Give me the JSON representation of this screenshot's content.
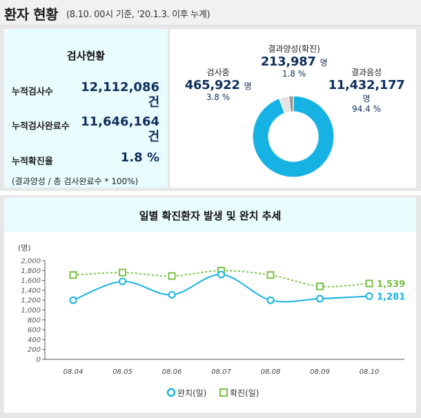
{
  "header": {
    "title": "환자 현황",
    "subtitle": "(8.10. 00시 기준, '20.1.3. 이후 누계)"
  },
  "test_status": {
    "title": "검사현황",
    "rows": [
      {
        "label": "누적검사수",
        "value": "12,112,086",
        "unit": "건"
      },
      {
        "label": "누적검사완료수",
        "value": "11,646,164",
        "unit": "건"
      },
      {
        "label": "누적확진율",
        "value": "1.8 %",
        "unit": ""
      }
    ],
    "formula": "(결과양성 / 총 검사완료수 * 100%)"
  },
  "pie": {
    "positive": {
      "name": "결과양성(확진)",
      "value": "213,987",
      "unit": "명",
      "pct": "1.8 %",
      "fraction": 0.018
    },
    "testing": {
      "name": "검사중",
      "value": "465,922",
      "unit": "명",
      "pct": "3.8 %",
      "fraction": 0.038
    },
    "negative": {
      "name": "결과음성",
      "value": "11,432,177",
      "unit": "명",
      "pct": "94.4 %",
      "fraction": 0.944
    },
    "colors": {
      "negative": "#16b2e4",
      "testing": "#e3e3e3",
      "positive": "#9a9a9a"
    }
  },
  "chart_title": "일별 확진환자 발생 및 완치 추세",
  "chart_data": {
    "type": "line",
    "title": "",
    "ylabel": "(명)",
    "xlabel": "",
    "categories": [
      "08.04",
      "08.05",
      "08.06",
      "08.07",
      "08.08",
      "08.09",
      "08.10"
    ],
    "ylim": [
      0,
      2000
    ],
    "yticks": [
      "0",
      "200",
      "400",
      "600",
      "800",
      "1,000",
      "1,200",
      "1,400",
      "1,600",
      "1,800",
      "2,000"
    ],
    "grid": false,
    "legend_position": "bottom",
    "series": [
      {
        "name": "완치(일)",
        "values": [
          1200,
          1580,
          1310,
          1720,
          1200,
          1230,
          1281
        ],
        "color": "#16b2e4",
        "last_label": "1,281"
      },
      {
        "name": "확진(일)",
        "values": [
          1710,
          1760,
          1690,
          1800,
          1710,
          1480,
          1539
        ],
        "color": "#77c043",
        "last_label": "1,539"
      }
    ]
  }
}
